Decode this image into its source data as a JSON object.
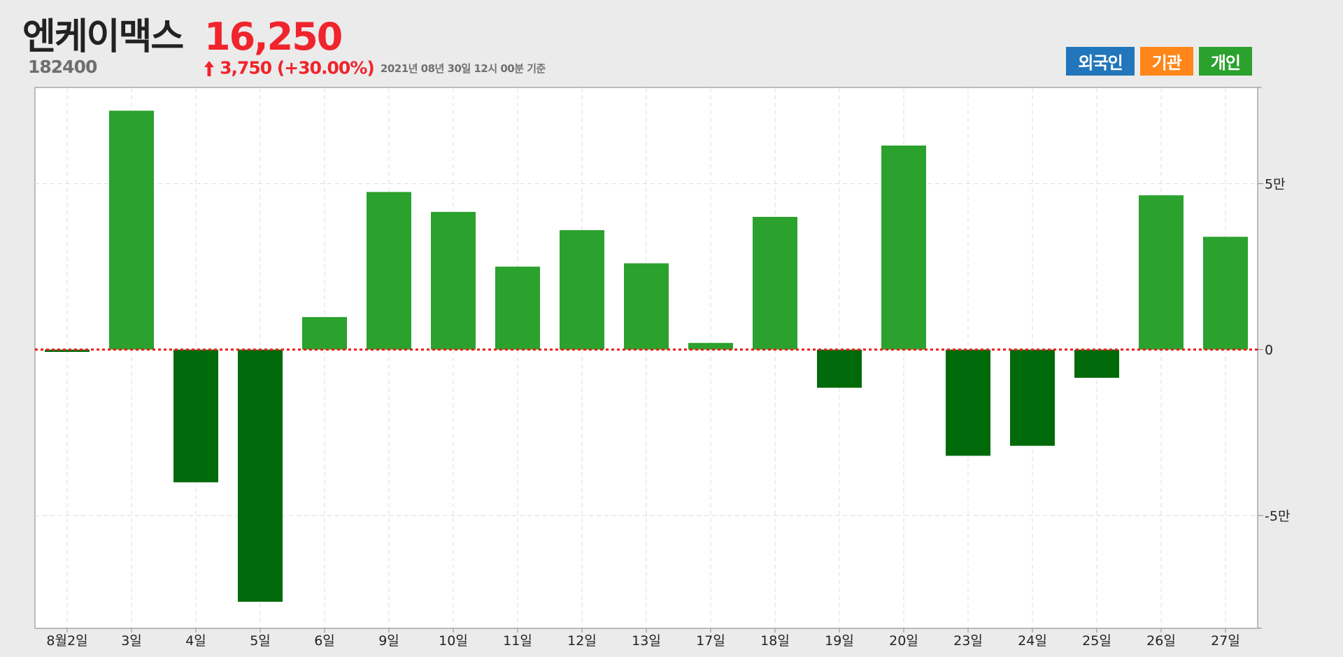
{
  "header": {
    "stock_name": "엔케이맥스",
    "stock_code": "182400",
    "price": "16,250",
    "change": "3,750 (+30.00%)",
    "timestamp": "2021년 08년 30일 12시 00분 기준"
  },
  "legend": {
    "foreign_label": "외국인",
    "institution_label": "기관",
    "individual_label": "개인"
  },
  "colors": {
    "positive_bar": "#2ba12e",
    "negative_bar": "#006a0b",
    "price_up": "#f0242c",
    "zero_line": "#ee1c1c",
    "legend_foreign": "#2276bb",
    "legend_institution": "#ff8618",
    "legend_individual": "#2ba12e"
  },
  "chart_data": {
    "type": "bar",
    "series_shown": "개인",
    "categories": [
      "8월2일",
      "3일",
      "4일",
      "5일",
      "6일",
      "9일",
      "10일",
      "11일",
      "12일",
      "13일",
      "17일",
      "18일",
      "19일",
      "20일",
      "23일",
      "24일",
      "25일",
      "26일",
      "27일"
    ],
    "values": [
      -700,
      72000,
      -40000,
      -76000,
      9800,
      47500,
      41500,
      25000,
      36000,
      26000,
      2000,
      40000,
      -11500,
      61500,
      -32000,
      -29000,
      -8500,
      46500,
      34000
    ],
    "y_ticks": [
      {
        "value": 50000,
        "label": "5만"
      },
      {
        "value": 0,
        "label": "0"
      },
      {
        "value": -50000,
        "label": "-5만"
      }
    ],
    "ylim": [
      -84000,
      79000
    ],
    "grid": true,
    "zero_line": "dotted red",
    "y_axis_side": "right"
  }
}
